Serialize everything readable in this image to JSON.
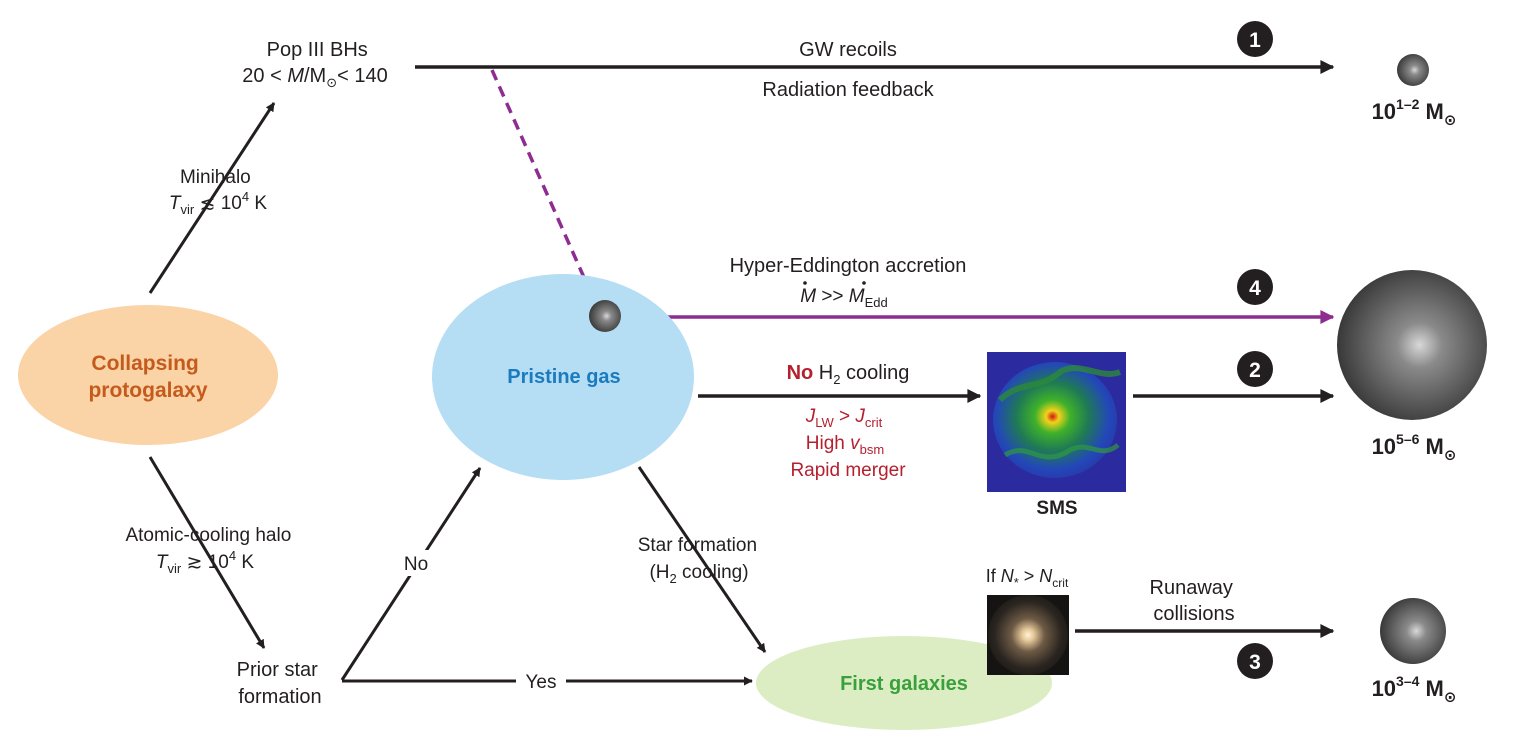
{
  "colors": {
    "arrow": "#231f20",
    "purple": "#8e2c91",
    "red_text": "#b5202e",
    "protogalaxy_fill": "#fad3a7",
    "protogalaxy_text": "#c45b1d",
    "pristine_fill": "#b5ddf4",
    "pristine_text": "#1b7bbf",
    "first_galaxies_fill": "#dcedc4",
    "first_galaxies_text": "#39a03c"
  },
  "nodes": {
    "protogalaxy": {
      "line1": "Collapsing",
      "line2": "protogalaxy"
    },
    "pristine_gas": {
      "label": "Pristine gas"
    },
    "first_galaxies": {
      "label": "First galaxies"
    },
    "sms": {
      "label": "SMS"
    },
    "pop3": {
      "line1": "Pop III BHs",
      "line2_pre": "20 < ",
      "line2_M": "M",
      "line2_mid": "/M",
      "line2_sub": "⊙",
      "line2_post": "< 140"
    },
    "prior_star_formation": {
      "line1": "Prior star",
      "line2": "formation"
    }
  },
  "labels": {
    "minihalo": {
      "line1": "Minihalo",
      "T": "T",
      "vir": "vir",
      "rel": " ≲ 10",
      "exp": "4",
      "unit": " K"
    },
    "atomic": {
      "line1": "Atomic-cooling halo",
      "T": "T",
      "vir": "vir",
      "rel": " ≳ 10",
      "exp": "4",
      "unit": " K"
    },
    "no": "No",
    "yes": "Yes",
    "star_formation": {
      "line1": "Star formation",
      "line2_pre": "(H",
      "line2_sub": "2",
      "line2_post": " cooling)"
    },
    "gw_recoils": "GW recoils",
    "radiation_feedback": "Radiation feedback",
    "hyper_eddington": "Hyper-Eddington accretion",
    "mdot": {
      "M1": "M",
      "rel": " >> ",
      "M2": "M",
      "sub": "Edd"
    },
    "no_h2": {
      "no": "No",
      "h": " H",
      "sub": "2",
      "rest": " cooling"
    },
    "jlw": {
      "J1": "J",
      "sub1": "LW",
      "rel": " > ",
      "J2": "J",
      "sub2": "crit"
    },
    "high_vbsm": {
      "pre": "High ",
      "v": "v",
      "sub": "bsm"
    },
    "rapid_merger": "Rapid merger",
    "if_n": {
      "pre": "If ",
      "N1": "N",
      "sub1": "*",
      "rel": " > ",
      "N2": "N",
      "sub2": "crit"
    },
    "runaway": {
      "line1": "Runaway",
      "line2": "collisions"
    }
  },
  "outcomes": [
    {
      "number": "1",
      "base": "10",
      "exp": "1–2",
      "unit": " M",
      "sun": "⊙"
    },
    {
      "number": "4",
      "base": "",
      "exp": "",
      "unit": "",
      "sun": ""
    },
    {
      "number": "2",
      "base": "10",
      "exp": "5–6",
      "unit": " M",
      "sun": "⊙"
    },
    {
      "number": "3",
      "base": "10",
      "exp": "3–4",
      "unit": " M",
      "sun": "⊙"
    }
  ]
}
